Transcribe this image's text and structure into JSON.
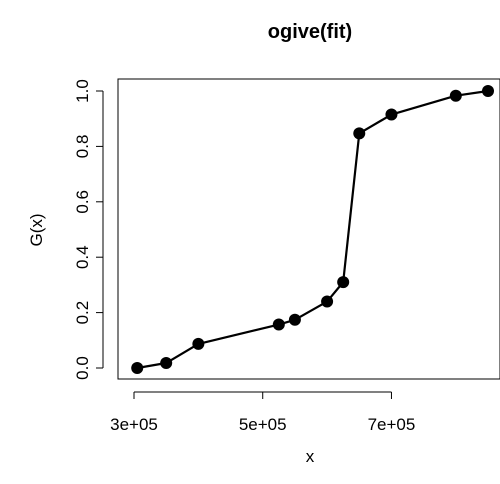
{
  "chart_data": {
    "type": "line",
    "title": "ogive(fit)",
    "xlabel": "x",
    "ylabel": "G(x)",
    "x": [
      305000,
      350000,
      400000,
      525000,
      550000,
      600000,
      625000,
      650000,
      700000,
      800000,
      850000
    ],
    "y": [
      0.0,
      0.018,
      0.087,
      0.157,
      0.174,
      0.24,
      0.31,
      0.847,
      0.915,
      0.983,
      1.0
    ],
    "xlim": [
      300000,
      850000
    ],
    "ylim": [
      0.0,
      1.0
    ],
    "xticks": [
      300000,
      500000,
      700000
    ],
    "xtick_labels": [
      "3e+05",
      "5e+05",
      "7e+05"
    ],
    "yticks": [
      0.0,
      0.2,
      0.4,
      0.6,
      0.8,
      1.0
    ],
    "ytick_labels": [
      "0.0",
      "0.2",
      "0.4",
      "0.6",
      "0.8",
      "1.0"
    ],
    "grid": false,
    "color": "#000000"
  }
}
